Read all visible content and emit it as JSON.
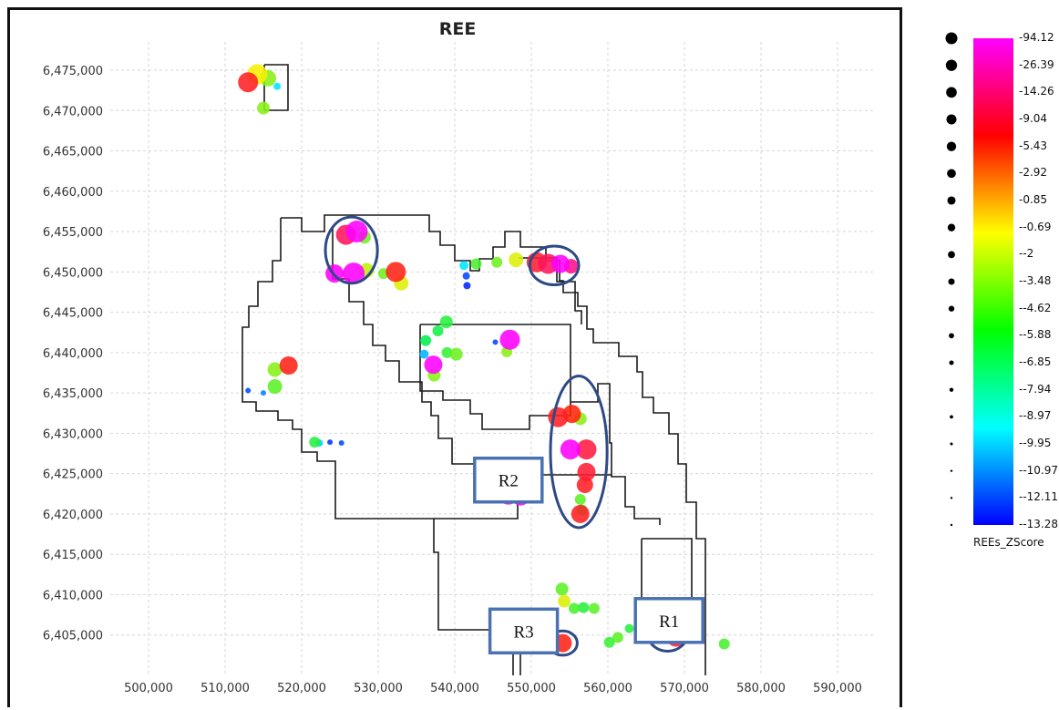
{
  "title": "REE",
  "x_ticks": [
    "500,000",
    "510,000",
    "520,000",
    "530,000",
    "540,000",
    "550,000",
    "560,000",
    "570,000",
    "580,000",
    "590,000"
  ],
  "y_ticks": [
    "6,405,000",
    "6,410,000",
    "6,415,000",
    "6,420,000",
    "6,425,000",
    "6,430,000",
    "6,435,000",
    "6,440,000",
    "6,445,000",
    "6,450,000",
    "6,455,000",
    "6,460,000",
    "6,465,000",
    "6,470,000",
    "6,475,000"
  ],
  "legend": {
    "caption": "REEs_ZScore",
    "labels": [
      "94.12",
      "26.39",
      "14.26",
      "9.04",
      "5.43",
      "2.92",
      "0.85",
      "-0.69",
      "-2",
      "-3.48",
      "-4.62",
      "-5.88",
      "-6.85",
      "-7.94",
      "-8.97",
      "-9.95",
      "-10.97",
      "-12.11",
      "-13.28"
    ],
    "gradient": [
      "#ff00ff",
      "#ff0000",
      "#ffff00",
      "#00ff00",
      "#00ffff",
      "#0000ff"
    ]
  },
  "regions": [
    {
      "label": "R1",
      "x": 568000,
      "y": 6406800
    },
    {
      "label": "R2",
      "x": 547000,
      "y": 6424200
    },
    {
      "label": "R3",
      "x": 549000,
      "y": 6405500
    }
  ],
  "highlight_ellipses": [
    {
      "cx": 526500,
      "cy": 6452700,
      "rx": 3400,
      "ry": 4100
    },
    {
      "cx": 553000,
      "cy": 6450800,
      "rx": 3200,
      "ry": 2400
    },
    {
      "cx": 556200,
      "cy": 6427700,
      "rx": 3700,
      "ry": 9400
    },
    {
      "cx": 554100,
      "cy": 6404000,
      "rx": 1900,
      "ry": 1500
    },
    {
      "cx": 567800,
      "cy": 6405200,
      "rx": 2600,
      "ry": 2200
    }
  ],
  "points": [
    {
      "x": 513000,
      "y": 6473500,
      "v": 40,
      "s": 11
    },
    {
      "x": 514200,
      "y": 6474500,
      "v": 14,
      "s": 11
    },
    {
      "x": 515600,
      "y": 6474000,
      "v": 10,
      "s": 9
    },
    {
      "x": 515000,
      "y": 6470300,
      "v": 10,
      "s": 7
    },
    {
      "x": 516800,
      "y": 6473000,
      "v": -2,
      "s": 4
    },
    {
      "x": 525800,
      "y": 6454600,
      "v": 60,
      "s": 11
    },
    {
      "x": 527200,
      "y": 6455000,
      "v": 94,
      "s": 12
    },
    {
      "x": 528200,
      "y": 6454300,
      "v": 9,
      "s": 7
    },
    {
      "x": 524300,
      "y": 6449800,
      "v": 94,
      "s": 10
    },
    {
      "x": 526800,
      "y": 6449800,
      "v": 94,
      "s": 12
    },
    {
      "x": 528500,
      "y": 6450200,
      "v": 12,
      "s": 8
    },
    {
      "x": 532300,
      "y": 6450000,
      "v": 35,
      "s": 11
    },
    {
      "x": 530700,
      "y": 6449800,
      "v": 9,
      "s": 6
    },
    {
      "x": 533000,
      "y": 6448600,
      "v": 13,
      "s": 8
    },
    {
      "x": 541200,
      "y": 6450800,
      "v": -2,
      "s": 5
    },
    {
      "x": 542800,
      "y": 6451000,
      "v": 7,
      "s": 6
    },
    {
      "x": 545500,
      "y": 6451200,
      "v": 9,
      "s": 6
    },
    {
      "x": 548000,
      "y": 6451500,
      "v": 13,
      "s": 8
    },
    {
      "x": 541500,
      "y": 6449500,
      "v": -9,
      "s": 4
    },
    {
      "x": 541600,
      "y": 6448300,
      "v": -11,
      "s": 4
    },
    {
      "x": 550700,
      "y": 6451200,
      "v": 45,
      "s": 11
    },
    {
      "x": 552200,
      "y": 6451000,
      "v": 60,
      "s": 11
    },
    {
      "x": 553800,
      "y": 6451000,
      "v": 94,
      "s": 10
    },
    {
      "x": 555200,
      "y": 6450700,
      "v": 70,
      "s": 8
    },
    {
      "x": 538900,
      "y": 6443800,
      "v": 5,
      "s": 7
    },
    {
      "x": 537800,
      "y": 6442700,
      "v": 4,
      "s": 6
    },
    {
      "x": 536200,
      "y": 6441500,
      "v": 3,
      "s": 6
    },
    {
      "x": 536000,
      "y": 6439800,
      "v": -4,
      "s": 5
    },
    {
      "x": 540200,
      "y": 6439800,
      "v": 9,
      "s": 7
    },
    {
      "x": 539000,
      "y": 6440000,
      "v": 6,
      "s": 6
    },
    {
      "x": 537200,
      "y": 6438500,
      "v": 94,
      "s": 10
    },
    {
      "x": 537300,
      "y": 6437200,
      "v": 10,
      "s": 7
    },
    {
      "x": 545300,
      "y": 6441300,
      "v": -9,
      "s": 3
    },
    {
      "x": 547200,
      "y": 6441600,
      "v": 94,
      "s": 11
    },
    {
      "x": 546800,
      "y": 6440100,
      "v": 10,
      "s": 6
    },
    {
      "x": 516500,
      "y": 6437900,
      "v": 10,
      "s": 8
    },
    {
      "x": 518300,
      "y": 6438400,
      "v": 35,
      "s": 10
    },
    {
      "x": 516500,
      "y": 6435800,
      "v": 8,
      "s": 8
    },
    {
      "x": 513000,
      "y": 6435300,
      "v": -9,
      "s": 3
    },
    {
      "x": 515000,
      "y": 6435000,
      "v": -6,
      "s": 3
    },
    {
      "x": 521700,
      "y": 6428900,
      "v": 5,
      "s": 6
    },
    {
      "x": 522300,
      "y": 6428800,
      "v": -3,
      "s": 4
    },
    {
      "x": 523700,
      "y": 6428900,
      "v": -10,
      "s": 3
    },
    {
      "x": 525200,
      "y": 6428800,
      "v": -9,
      "s": 3
    },
    {
      "x": 553500,
      "y": 6432000,
      "v": 40,
      "s": 11
    },
    {
      "x": 555300,
      "y": 6432400,
      "v": 30,
      "s": 10
    },
    {
      "x": 556400,
      "y": 6431800,
      "v": 10,
      "s": 7
    },
    {
      "x": 555100,
      "y": 6428000,
      "v": 94,
      "s": 11
    },
    {
      "x": 557200,
      "y": 6428000,
      "v": 50,
      "s": 11
    },
    {
      "x": 557200,
      "y": 6425200,
      "v": 45,
      "s": 10
    },
    {
      "x": 557000,
      "y": 6423600,
      "v": 40,
      "s": 9
    },
    {
      "x": 556400,
      "y": 6421800,
      "v": 8,
      "s": 6
    },
    {
      "x": 556600,
      "y": 6420500,
      "v": 6,
      "s": 6
    },
    {
      "x": 556400,
      "y": 6420000,
      "v": 40,
      "s": 10
    },
    {
      "x": 547000,
      "y": 6422400,
      "v": 94,
      "s": 11
    },
    {
      "x": 548600,
      "y": 6422300,
      "v": 94,
      "s": 11
    },
    {
      "x": 545200,
      "y": 6422200,
      "v": 10,
      "s": 7
    },
    {
      "x": 554000,
      "y": 6410700,
      "v": 8,
      "s": 7
    },
    {
      "x": 554300,
      "y": 6409200,
      "v": 13,
      "s": 7
    },
    {
      "x": 555600,
      "y": 6408300,
      "v": 7,
      "s": 6
    },
    {
      "x": 556800,
      "y": 6408400,
      "v": 5,
      "s": 6
    },
    {
      "x": 558200,
      "y": 6408300,
      "v": 8,
      "s": 6
    },
    {
      "x": 554100,
      "y": 6404000,
      "v": 35,
      "s": 10
    },
    {
      "x": 560200,
      "y": 6404100,
      "v": 6,
      "s": 6
    },
    {
      "x": 561300,
      "y": 6404700,
      "v": 8,
      "s": 6
    },
    {
      "x": 562800,
      "y": 6405800,
      "v": 5,
      "s": 5
    },
    {
      "x": 566500,
      "y": 6405600,
      "v": 14,
      "s": 9
    },
    {
      "x": 567200,
      "y": 6405600,
      "v": 94,
      "s": 11
    },
    {
      "x": 568900,
      "y": 6404800,
      "v": 50,
      "s": 11
    },
    {
      "x": 575200,
      "y": 6403900,
      "v": 7,
      "s": 6
    },
    {
      "x": 566000,
      "y": 6405200,
      "v": 6,
      "s": 5
    }
  ]
}
